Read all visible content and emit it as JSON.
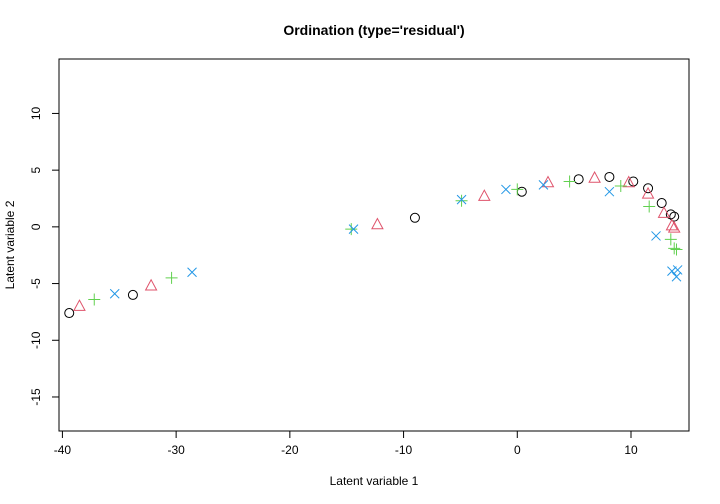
{
  "chart_data": {
    "type": "scatter",
    "title": "Ordination (type='residual')",
    "xlabel": "Latent variable 1",
    "ylabel": "Latent variable 2",
    "xlim": [
      -40.3,
      15.1
    ],
    "ylim": [
      -18,
      14.8
    ],
    "x_ticks": [
      -40,
      -30,
      -20,
      -10,
      0,
      10
    ],
    "y_ticks": [
      -15,
      -10,
      -5,
      0,
      5,
      10
    ],
    "grid": false,
    "legend": "none",
    "series": [
      {
        "marker": "circle",
        "color": "#000000",
        "points": [
          [
            -39.4,
            -7.6
          ],
          [
            -33.8,
            -6.0
          ],
          [
            -9.0,
            0.8
          ],
          [
            0.4,
            3.1
          ],
          [
            5.4,
            4.2
          ],
          [
            8.1,
            4.4
          ],
          [
            10.2,
            4.0
          ],
          [
            11.5,
            3.4
          ],
          [
            12.7,
            2.1
          ],
          [
            13.5,
            1.1
          ],
          [
            13.8,
            0.9
          ]
        ]
      },
      {
        "marker": "triangle",
        "color": "#DF536B",
        "points": [
          [
            -38.5,
            -7.0
          ],
          [
            -32.2,
            -5.2
          ],
          [
            -12.3,
            0.2
          ],
          [
            -2.9,
            2.7
          ],
          [
            2.7,
            3.9
          ],
          [
            6.8,
            4.3
          ],
          [
            9.8,
            3.9
          ],
          [
            11.5,
            2.9
          ],
          [
            12.9,
            1.2
          ],
          [
            13.6,
            0.1
          ],
          [
            13.8,
            -0.1
          ]
        ]
      },
      {
        "marker": "plus",
        "color": "#61D04F",
        "points": [
          [
            -37.2,
            -6.4
          ],
          [
            -30.4,
            -4.5
          ],
          [
            -14.6,
            -0.2
          ],
          [
            -4.9,
            2.3
          ],
          [
            0.0,
            3.3
          ],
          [
            4.6,
            4.0
          ],
          [
            9.1,
            3.6
          ],
          [
            11.6,
            1.8
          ],
          [
            13.5,
            -1.1
          ],
          [
            13.8,
            -1.9
          ],
          [
            14.0,
            -2.0
          ]
        ]
      },
      {
        "marker": "cross",
        "color": "#2297E6",
        "points": [
          [
            -35.4,
            -5.9
          ],
          [
            -28.6,
            -4.0
          ],
          [
            -14.4,
            -0.2
          ],
          [
            -4.9,
            2.4
          ],
          [
            -1.0,
            3.3
          ],
          [
            2.3,
            3.7
          ],
          [
            8.1,
            3.1
          ],
          [
            12.2,
            -0.8
          ],
          [
            13.6,
            -3.9
          ],
          [
            14.1,
            -3.8
          ],
          [
            14.0,
            -4.4
          ]
        ]
      }
    ]
  }
}
